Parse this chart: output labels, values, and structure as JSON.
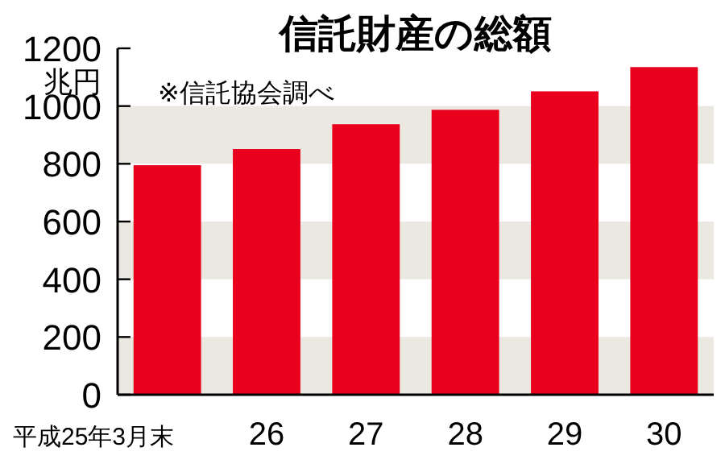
{
  "chart_data": {
    "type": "bar",
    "title": "信託財産の総額",
    "ylabel": "兆円",
    "annotations": [
      "※信託協会調べ"
    ],
    "categories": [
      "平成25年3月末",
      "26",
      "27",
      "28",
      "29",
      "30"
    ],
    "values": [
      795,
      851,
      937,
      987,
      1051,
      1135
    ],
    "color": "#e8001c",
    "ylim": [
      0,
      1200
    ],
    "yticks": [
      0,
      200,
      400,
      600,
      800,
      1000,
      1200
    ],
    "bands": [
      {
        "axis": "y",
        "from": 0,
        "to": 200,
        "color": "#ebe8e1"
      },
      {
        "axis": "y",
        "from": 400,
        "to": 600,
        "color": "#ebe8e1"
      },
      {
        "axis": "y",
        "from": 800,
        "to": 1000,
        "color": "#ebe8e1"
      }
    ]
  }
}
